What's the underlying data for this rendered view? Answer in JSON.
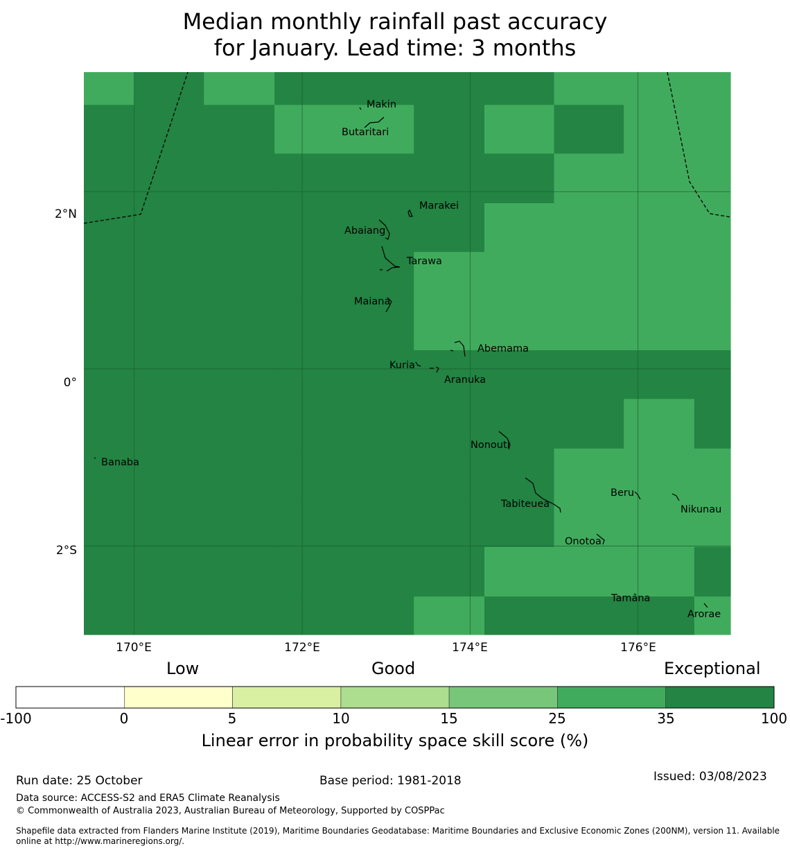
{
  "title_line1": "Median monthly rainfall past accuracy",
  "title_line2": "for January. Lead time: 3 months",
  "map": {
    "lon_range": [
      169.4,
      177.1
    ],
    "lat_range": [
      -3.0,
      3.35
    ],
    "lat_ticks": [
      {
        "value": 2,
        "label": "2°N"
      },
      {
        "value": 0,
        "label": "0°"
      },
      {
        "value": -2,
        "label": "2°S"
      }
    ],
    "lon_ticks": [
      {
        "value": 170,
        "label": "170°E"
      },
      {
        "value": 172,
        "label": "172°E"
      },
      {
        "value": 174,
        "label": "174°E"
      },
      {
        "value": 176,
        "label": "176°E"
      }
    ],
    "colors": {
      "dark": "#238443",
      "medium": "#41ab5d"
    },
    "grid_lons": [
      169.4,
      170.0,
      170.83,
      171.67,
      172.5,
      173.33,
      174.17,
      175.0,
      175.83,
      176.67,
      177.1
    ],
    "grid_lats": [
      3.35,
      2.98,
      2.43,
      1.87,
      1.32,
      0.76,
      0.21,
      -0.34,
      -0.9,
      -1.46,
      -2.01,
      -2.57,
      -3.0
    ],
    "grid_classes": [
      [
        "medium",
        "dark",
        "medium",
        "dark",
        "dark",
        "dark",
        "dark",
        "medium",
        "medium",
        "medium"
      ],
      [
        "dark",
        "dark",
        "dark",
        "medium",
        "medium",
        "dark",
        "medium",
        "dark",
        "medium",
        "medium"
      ],
      [
        "dark",
        "dark",
        "dark",
        "dark",
        "dark",
        "dark",
        "dark",
        "medium",
        "medium",
        "medium"
      ],
      [
        "dark",
        "dark",
        "dark",
        "dark",
        "dark",
        "dark",
        "medium",
        "medium",
        "medium",
        "medium"
      ],
      [
        "dark",
        "dark",
        "dark",
        "dark",
        "dark",
        "medium",
        "medium",
        "medium",
        "medium",
        "medium"
      ],
      [
        "dark",
        "dark",
        "dark",
        "dark",
        "dark",
        "medium",
        "medium",
        "medium",
        "medium",
        "medium"
      ],
      [
        "dark",
        "dark",
        "dark",
        "dark",
        "dark",
        "dark",
        "dark",
        "dark",
        "dark",
        "dark"
      ],
      [
        "dark",
        "dark",
        "dark",
        "dark",
        "dark",
        "dark",
        "dark",
        "dark",
        "medium",
        "dark"
      ],
      [
        "dark",
        "dark",
        "dark",
        "dark",
        "dark",
        "dark",
        "dark",
        "medium",
        "medium",
        "medium"
      ],
      [
        "dark",
        "dark",
        "dark",
        "dark",
        "dark",
        "dark",
        "dark",
        "medium",
        "medium",
        "medium"
      ],
      [
        "dark",
        "dark",
        "dark",
        "dark",
        "dark",
        "dark",
        "medium",
        "medium",
        "medium",
        "dark"
      ],
      [
        "dark",
        "dark",
        "dark",
        "dark",
        "dark",
        "medium",
        "dark",
        "dark",
        "dark",
        "medium"
      ]
    ],
    "islands": [
      {
        "name": "Makin",
        "lon": 172.95,
        "lat": 3.0
      },
      {
        "name": "Butaritari",
        "lon": 172.8,
        "lat": 3.06
      },
      {
        "name": "Marakei",
        "lon": 173.3,
        "lat": 2.0
      },
      {
        "name": "Abaiang",
        "lon": 173.05,
        "lat": 1.85
      },
      {
        "name": "Tarawa",
        "lon": 173.1,
        "lat": 1.45
      },
      {
        "name": "Maiana",
        "lon": 173.0,
        "lat": 0.92
      },
      {
        "name": "Abemama",
        "lon": 173.85,
        "lat": 0.38
      },
      {
        "name": "Kuria",
        "lon": 173.4,
        "lat": 0.23
      },
      {
        "name": "Aranuka",
        "lon": 173.6,
        "lat": 0.17
      },
      {
        "name": "Nonouti",
        "lon": 174.4,
        "lat": -0.63
      },
      {
        "name": "Banaba",
        "lon": 169.53,
        "lat": -0.88
      },
      {
        "name": "Tabiteuea",
        "lon": 174.9,
        "lat": -1.35
      },
      {
        "name": "Beru",
        "lon": 176.0,
        "lat": -1.35
      },
      {
        "name": "Nikunau",
        "lon": 176.45,
        "lat": -1.38
      },
      {
        "name": "Onotoa",
        "lon": 175.55,
        "lat": -1.8
      },
      {
        "name": "Tamana",
        "lon": 175.98,
        "lat": -2.52
      },
      {
        "name": "Arorae",
        "lon": 176.82,
        "lat": -2.65
      }
    ]
  },
  "colorbar": {
    "headings": [
      "Low",
      "Good",
      "Exceptional"
    ],
    "boundaries": [
      "-100",
      "0",
      "5",
      "10",
      "15",
      "25",
      "35",
      "100"
    ],
    "colors": [
      "#ffffff",
      "#ffffcc",
      "#d9f0a3",
      "#addd8e",
      "#78c679",
      "#41ab5d",
      "#238443"
    ],
    "label": "Linear error in probability space skill score (%)"
  },
  "footer": {
    "run_date": "Run date: 25 October",
    "base_period": "Base period: 1981-2018",
    "issued": "Issued: 03/08/2023",
    "data_source": "Data source: ACCESS-S2 and ERA5 Climate Reanalysis",
    "copyright": "© Commonwealth of Australia 2023, Australian Bureau of Meteorology, Supported by COSPPac",
    "shapefile": "Shapefile data extracted from Flanders Marine Institute (2019), Maritime Boundaries Geodatabase: Maritime Boundaries and Exclusive Economic Zones (200NM), version 11. Available online at http://www.marineregions.org/."
  }
}
